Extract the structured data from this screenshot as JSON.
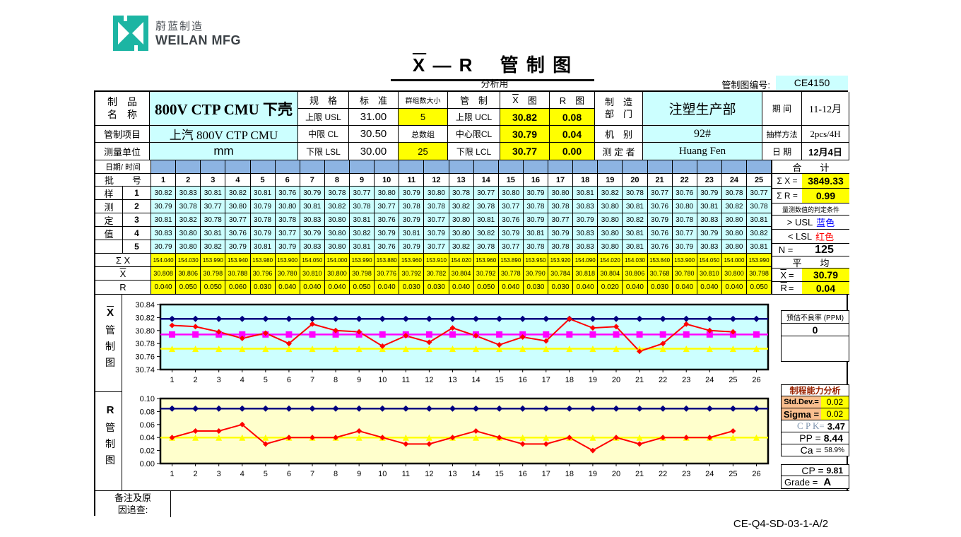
{
  "page": {
    "logo_cn": "蔚蓝制造",
    "logo_en": "WEILAN MFG",
    "title_x": "X",
    "title_rest": " — R　 管 制 图",
    "subtitle": "分析用",
    "chartno_label": "管制图编号:",
    "chartno_value": "CE4150",
    "doc_code": "CE-Q4-SD-03-1-A/2"
  },
  "colors": {
    "brand_teal": "#1CB5A3",
    "cell_cyan": "#CCFFFF",
    "cell_yellow": "#FFFF00",
    "cell_blue": "#8DB4E2",
    "cell_gray": "#C0C0C0",
    "cell_orange": "#FABF8F",
    "ucl_line": "#000080",
    "cl_line_xbar": "#FF00FF",
    "lcl_line": "#FFFF00",
    "data_line": "#FF0000",
    "xbar_chart_bg": "#CCFFFF",
    "r_chart_bg": "#FFFFCC"
  },
  "header": {
    "product_l1": "制　品",
    "product_l2": "名　称",
    "product": "800V CTP CMU 下壳",
    "spec_h": "规　格",
    "std_h": "标　准",
    "subg_h": "群组数大小",
    "ctrl_h": "管　制",
    "xchart_x": "X",
    "xchart_suffix": "　图",
    "rchart_h": "R　图",
    "usl_l": "上限 USL",
    "usl": "31.00",
    "subg": "5",
    "ucl_l": "上限 UCL",
    "ucl_x": "30.82",
    "ucl_r": "0.08",
    "dept_l1": "制　造",
    "dept_l2": "部　门",
    "dept": "注塑生产部",
    "period_l": "期 间",
    "period": "11-12月",
    "item_l": "管制项目",
    "item": "上汽 800V CTP CMU",
    "cl_l": "中限 CL",
    "cl": "30.50",
    "totgrp_l": "总数组",
    "ccl_l": "中心限CL",
    "ccl_x": "30.79",
    "ccl_r": "0.04",
    "mach_l": "机　别",
    "mach": "92#",
    "sampm_l": "抽样方法",
    "sampm": "2pcs/4H",
    "unit_l": "测量单位",
    "unit": "mm",
    "lsl_l": "下限 LSL",
    "lsl": "30.00",
    "totgrp": "25",
    "lcl_l": "下限 LCL",
    "lcl_x": "30.77",
    "lcl_r": "0.00",
    "meas_l": "测 定 者",
    "meas": "Huang Fen",
    "date_l": "日 期",
    "date": "12月4日"
  },
  "data_table": {
    "date_time_label": "日期/ 时间",
    "date_cells": [
      "",
      "",
      "",
      "",
      "",
      "",
      "",
      "",
      "",
      "",
      "",
      "",
      "",
      "",
      "",
      "",
      "",
      "",
      "",
      "",
      "",
      "",
      "",
      "",
      ""
    ],
    "batch_label": "批　　号",
    "batch_numbers": [
      "1",
      "2",
      "3",
      "4",
      "5",
      "6",
      "7",
      "8",
      "9",
      "10",
      "11",
      "12",
      "13",
      "14",
      "15",
      "16",
      "17",
      "18",
      "19",
      "20",
      "21",
      "22",
      "23",
      "24",
      "25"
    ],
    "samples": [
      {
        "char": "样",
        "num": "1",
        "values": [
          "30.82",
          "30.83",
          "30.81",
          "30.82",
          "30.81",
          "30.76",
          "30.79",
          "30.78",
          "30.77",
          "30.80",
          "30.79",
          "30.80",
          "30.78",
          "30.77",
          "30.80",
          "30.79",
          "30.80",
          "30.81",
          "30.82",
          "30.78",
          "30.77",
          "30.76",
          "30.79",
          "30.78",
          "30.77"
        ]
      },
      {
        "char": "测",
        "num": "2",
        "values": [
          "30.79",
          "30.78",
          "30.77",
          "30.80",
          "30.79",
          "30.80",
          "30.81",
          "30.82",
          "30.78",
          "30.77",
          "30.78",
          "30.78",
          "30.82",
          "30.78",
          "30.77",
          "30.78",
          "30.78",
          "30.83",
          "30.80",
          "30.81",
          "30.76",
          "30.80",
          "30.81",
          "30.82",
          "30.78"
        ]
      },
      {
        "char": "定",
        "num": "3",
        "values": [
          "30.81",
          "30.82",
          "30.78",
          "30.77",
          "30.78",
          "30.78",
          "30.83",
          "30.80",
          "30.81",
          "30.76",
          "30.79",
          "30.77",
          "30.80",
          "30.81",
          "30.76",
          "30.79",
          "30.77",
          "30.79",
          "30.80",
          "30.82",
          "30.79",
          "30.78",
          "30.83",
          "30.80",
          "30.81"
        ]
      },
      {
        "char": "值",
        "num": "4",
        "values": [
          "30.83",
          "30.80",
          "30.81",
          "30.76",
          "30.79",
          "30.77",
          "30.79",
          "30.80",
          "30.82",
          "30.79",
          "30.81",
          "30.79",
          "30.80",
          "30.82",
          "30.79",
          "30.81",
          "30.79",
          "30.83",
          "30.80",
          "30.81",
          "30.76",
          "30.77",
          "30.79",
          "30.80",
          "30.82"
        ]
      },
      {
        "char": "",
        "num": "5",
        "values": [
          "30.79",
          "30.80",
          "30.82",
          "30.79",
          "30.81",
          "30.79",
          "30.83",
          "30.80",
          "30.81",
          "30.76",
          "30.79",
          "30.77",
          "30.82",
          "30.78",
          "30.77",
          "30.78",
          "30.78",
          "30.83",
          "30.80",
          "30.81",
          "30.76",
          "30.79",
          "30.83",
          "30.80",
          "30.81"
        ]
      }
    ],
    "sum_label": "Σ X",
    "sum_values": [
      "154.040",
      "154.030",
      "153.990",
      "153.940",
      "153.980",
      "153.900",
      "154.050",
      "154.000",
      "153.990",
      "153.880",
      "153.960",
      "153.910",
      "154.020",
      "153.960",
      "153.890",
      "153.950",
      "153.920",
      "154.090",
      "154.020",
      "154.030",
      "153.840",
      "153.900",
      "154.050",
      "154.000",
      "153.990"
    ],
    "xbar_label_x": "X",
    "xbar_values": [
      "30.808",
      "30.806",
      "30.798",
      "30.788",
      "30.796",
      "30.780",
      "30.810",
      "30.800",
      "30.798",
      "30.776",
      "30.792",
      "30.782",
      "30.804",
      "30.792",
      "30.778",
      "30.790",
      "30.784",
      "30.818",
      "30.804",
      "30.806",
      "30.768",
      "30.780",
      "30.810",
      "30.800",
      "30.798"
    ],
    "r_label": "R",
    "r_values": [
      "0.040",
      "0.050",
      "0.050",
      "0.060",
      "0.030",
      "0.040",
      "0.040",
      "0.040",
      "0.050",
      "0.040",
      "0.030",
      "0.030",
      "0.040",
      "0.050",
      "0.040",
      "0.030",
      "0.030",
      "0.040",
      "0.020",
      "0.040",
      "0.030",
      "0.040",
      "0.040",
      "0.040",
      "0.050"
    ]
  },
  "totals": {
    "total_h": "合　　计",
    "sumx_l": "Σ X =",
    "sumx": "3849.33",
    "sumr_l": "Σ R =",
    "sumr": "0.99",
    "cond_h": "量测数值的判定条件",
    "usl_rule": "> USL",
    "usl_color": "蓝色",
    "lsl_rule": "< LSL",
    "lsl_color": "红色",
    "n_l": "N =",
    "n": "125",
    "avg_h": "平　　均",
    "avgx_x": "X",
    "avgx_eq": "=",
    "avgx": "30.79",
    "avgr_r": "R",
    "avgr_eq": "=",
    "avgr": "0.04"
  },
  "side": {
    "ppm_h": "预估不良率 (PPM)",
    "ppm": "0",
    "cap_h": "制程能力分析",
    "sd_l": "Std.Dev.=",
    "sd": "0.02",
    "sig_l": "Sigma =",
    "sig": "0.02",
    "cpk_l": "C P K=",
    "cpk": "3.47",
    "pp_l": "PP =",
    "pp": "8.44",
    "ca_l": "Ca =",
    "ca": "58.9%",
    "cp_l": "CP =",
    "cp": "9.81",
    "grade_l": "Grade =",
    "grade": "A"
  },
  "footer": {
    "remark1": "备注及原",
    "remark2": "因追查:"
  },
  "chart_data": [
    {
      "type": "line",
      "title": "X̄ 管制图",
      "axis_label_sym": "X",
      "axis_label_chars": "管制图",
      "bg": "#CCFFFF",
      "ylim": [
        30.74,
        30.84
      ],
      "yticks": [
        "30.84",
        "30.82",
        "30.80",
        "30.78",
        "30.76",
        "30.74"
      ],
      "xticks": [
        "1",
        "2",
        "3",
        "4",
        "5",
        "6",
        "7",
        "8",
        "9",
        "10",
        "11",
        "12",
        "13",
        "14",
        "15",
        "16",
        "17",
        "18",
        "19",
        "20",
        "21",
        "22",
        "23",
        "24",
        "25",
        "26"
      ],
      "legend_position": "none",
      "grid": false,
      "series": [
        {
          "name": "UCL",
          "color": "#000080",
          "marker": "diamond",
          "const": 30.818,
          "count": 26
        },
        {
          "name": "CL",
          "color": "#FF00FF",
          "marker": "square",
          "const": 30.794,
          "count": 26
        },
        {
          "name": "LCL",
          "color": "#FFFF00",
          "marker": "triangle",
          "const": 30.772,
          "count": 26
        },
        {
          "name": "Xbar",
          "color": "#FF0000",
          "marker": "diamond",
          "values": [
            30.808,
            30.806,
            30.798,
            30.788,
            30.796,
            30.78,
            30.81,
            30.8,
            30.798,
            30.776,
            30.792,
            30.782,
            30.804,
            30.792,
            30.778,
            30.79,
            30.784,
            30.818,
            30.804,
            30.806,
            30.768,
            30.78,
            30.81,
            30.8,
            30.798
          ]
        }
      ]
    },
    {
      "type": "line",
      "title": "R 管制图",
      "axis_label_sym": "R",
      "axis_label_chars": "管制图",
      "bg": "#FFFFCC",
      "ylim": [
        0,
        0.1
      ],
      "yticks": [
        "0.10",
        "0.08",
        "0.06",
        "0.04",
        "0.02",
        "0.00"
      ],
      "xticks": [
        "1",
        "2",
        "3",
        "4",
        "5",
        "6",
        "7",
        "8",
        "9",
        "10",
        "11",
        "12",
        "13",
        "14",
        "15",
        "16",
        "17",
        "18",
        "19",
        "20",
        "21",
        "22",
        "23",
        "24",
        "25",
        "26"
      ],
      "legend_position": "none",
      "grid": false,
      "series": [
        {
          "name": "UCL",
          "color": "#000080",
          "marker": "diamond",
          "const": 0.0845,
          "count": 26
        },
        {
          "name": "CL",
          "color": "#FFFF00",
          "marker": "triangle",
          "const": 0.04,
          "count": 26
        },
        {
          "name": "R",
          "color": "#FF0000",
          "marker": "diamond",
          "values": [
            0.04,
            0.05,
            0.05,
            0.06,
            0.03,
            0.04,
            0.04,
            0.04,
            0.05,
            0.04,
            0.03,
            0.03,
            0.04,
            0.05,
            0.04,
            0.03,
            0.03,
            0.04,
            0.02,
            0.04,
            0.03,
            0.04,
            0.04,
            0.04,
            0.05
          ]
        }
      ]
    }
  ]
}
